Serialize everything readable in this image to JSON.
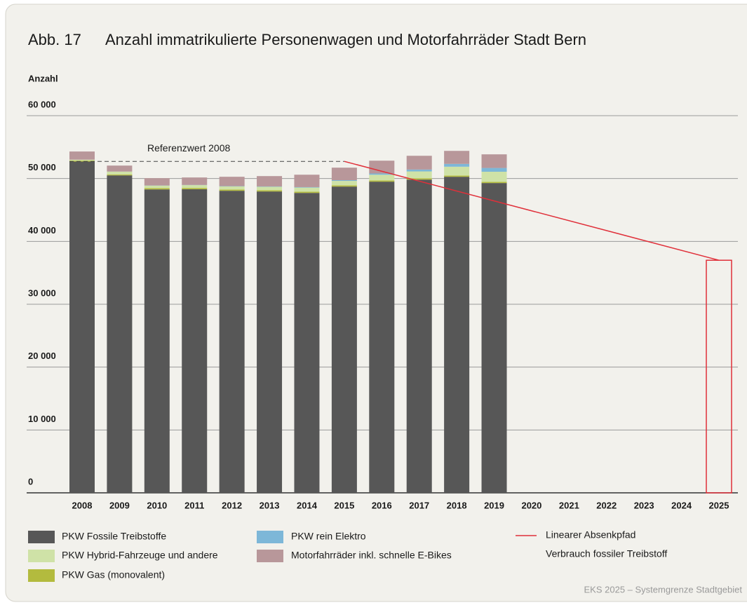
{
  "chart_data": {
    "type": "stacked_bar",
    "figure_label": "Abb. 17",
    "title": "Anzahl immatrikulierte Personenwagen und Motorfahrräder Stadt Bern",
    "y_label": "Anzahl",
    "source": "EKS 2025 – Systemgrenze Stadtgebiet",
    "categories": [
      "2008",
      "2009",
      "2010",
      "2011",
      "2012",
      "2013",
      "2014",
      "2015",
      "2016",
      "2017",
      "2018",
      "2019",
      "2020",
      "2021",
      "2022",
      "2023",
      "2024",
      "2025"
    ],
    "series": [
      {
        "name": "PKW Fossile Treibstoffe",
        "color": "#575757",
        "values": [
          52700,
          50500,
          48270,
          48300,
          48050,
          47940,
          47710,
          48720,
          49500,
          49830,
          50280,
          49280,
          null,
          null,
          null,
          null,
          null,
          null
        ]
      },
      {
        "name": "PKW Gas (monovalent)",
        "color": "#b3bb3e",
        "values": [
          150,
          150,
          200,
          200,
          200,
          200,
          200,
          200,
          200,
          200,
          200,
          200,
          null,
          null,
          null,
          null,
          null,
          null
        ]
      },
      {
        "name": "PKW Hybrid-Fahrzeuge und andere",
        "color": "#cfe2a7",
        "values": [
          150,
          450,
          400,
          450,
          500,
          550,
          650,
          700,
          900,
          1100,
          1400,
          1600,
          null,
          null,
          null,
          null,
          null,
          null
        ]
      },
      {
        "name": "PKW rein Elektro",
        "color": "#7db7d8",
        "values": [
          0,
          10,
          20,
          30,
          40,
          50,
          70,
          120,
          200,
          300,
          450,
          600,
          null,
          null,
          null,
          null,
          null,
          null
        ]
      },
      {
        "name": "Motorfahrräder inkl. schnelle E-Bikes",
        "color": "#b8979a",
        "values": [
          1300,
          950,
          1170,
          1190,
          1490,
          1650,
          1980,
          1990,
          2040,
          2190,
          2070,
          2170,
          null,
          null,
          null,
          null,
          null,
          null
        ]
      }
    ],
    "reference": {
      "label": "Referenzwert 2008",
      "value": 52730
    },
    "target_path": {
      "name": "Linearer Absenkpfad",
      "description": "Verbrauch fossiler Treibstoff",
      "color": "#e0303a",
      "x": [
        "2015",
        "2025"
      ],
      "values": [
        52730,
        37000
      ]
    },
    "ylim": [
      0,
      60000
    ],
    "yticks": [
      0,
      {
        "value": 10000,
        "label": "10 000"
      },
      {
        "value": 20000,
        "label": "20 000"
      },
      {
        "value": 30000,
        "label": "30 000"
      },
      {
        "value": 40000,
        "label": "40 000"
      },
      {
        "value": 50000,
        "label": "50 000"
      },
      {
        "value": 60000,
        "label": "60 000"
      }
    ],
    "grid": true
  }
}
